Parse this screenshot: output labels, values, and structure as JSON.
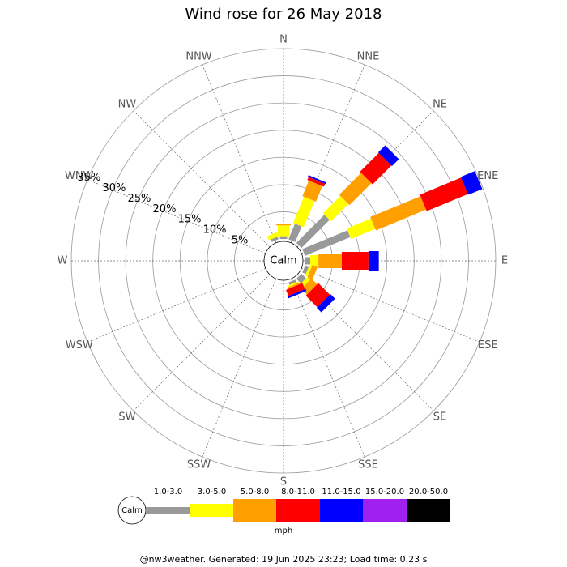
{
  "chart_data": {
    "type": "windrose",
    "title": "Wind rose for 26 May 2018",
    "center_label": "Calm",
    "categories": [
      "N",
      "NNE",
      "NE",
      "ENE",
      "E",
      "ESE",
      "SE",
      "SSE",
      "S",
      "SSW",
      "SW",
      "WSW",
      "W",
      "WNW",
      "NW",
      "NNW"
    ],
    "series": [
      {
        "name": "1.0-3.0",
        "color": "#999999",
        "values": [
          0.5,
          3.1,
          7.3,
          9,
          0.9,
          0.7,
          1.2,
          0.5,
          0.2,
          0,
          0,
          0,
          0,
          0,
          0,
          0.5
        ]
      },
      {
        "name": "3.0-5.0",
        "color": "#ffff00",
        "values": [
          2,
          5.2,
          4.5,
          4.8,
          1.5,
          0.5,
          0.7,
          0.3,
          0,
          0,
          0,
          0,
          0,
          0,
          0,
          0.8
        ]
      },
      {
        "name": "5.0-8.0",
        "color": "#ffa000",
        "values": [
          0.3,
          3.1,
          5.7,
          10,
          4.3,
          1,
          1.5,
          0.3,
          0,
          0,
          0,
          0,
          0,
          0,
          0,
          0
        ]
      },
      {
        "name": "8.0-11.0",
        "color": "#ff0000",
        "values": [
          0,
          0.6,
          4.9,
          8.2,
          4.9,
          0,
          3,
          1.2,
          0,
          0,
          0,
          0,
          0,
          0,
          0,
          0
        ]
      },
      {
        "name": "11.0-15.0",
        "color": "#0000ff",
        "values": [
          0,
          0.3,
          1.8,
          2.8,
          1.9,
          0,
          1.2,
          0.4,
          0,
          0,
          0,
          0,
          0,
          0,
          0,
          0
        ]
      },
      {
        "name": "15.0-20.0",
        "color": "#a020f0",
        "values": [
          0,
          0,
          0,
          0,
          0,
          0,
          0,
          0,
          0,
          0,
          0,
          0,
          0,
          0,
          0,
          0
        ]
      },
      {
        "name": "20.0-50.0",
        "color": "#000000",
        "values": [
          0,
          0,
          0,
          0,
          0,
          0,
          0,
          0,
          0,
          0,
          0,
          0,
          0,
          0,
          0,
          0
        ]
      }
    ],
    "rlim": [
      0,
      35
    ],
    "rticks": [
      {
        "value": 5,
        "label": "5%"
      },
      {
        "value": 10,
        "label": "10%"
      },
      {
        "value": 15,
        "label": "15%"
      },
      {
        "value": 20,
        "label": "20%"
      },
      {
        "value": 25,
        "label": "25%"
      },
      {
        "value": 30,
        "label": "30%"
      },
      {
        "value": 35,
        "label": "35%"
      }
    ],
    "legend_calm": "Calm",
    "legend_unit": "mph",
    "footer": "@nw3weather. Generated: 19 Jun 2025 23:23; Load time: 0.23 s"
  }
}
